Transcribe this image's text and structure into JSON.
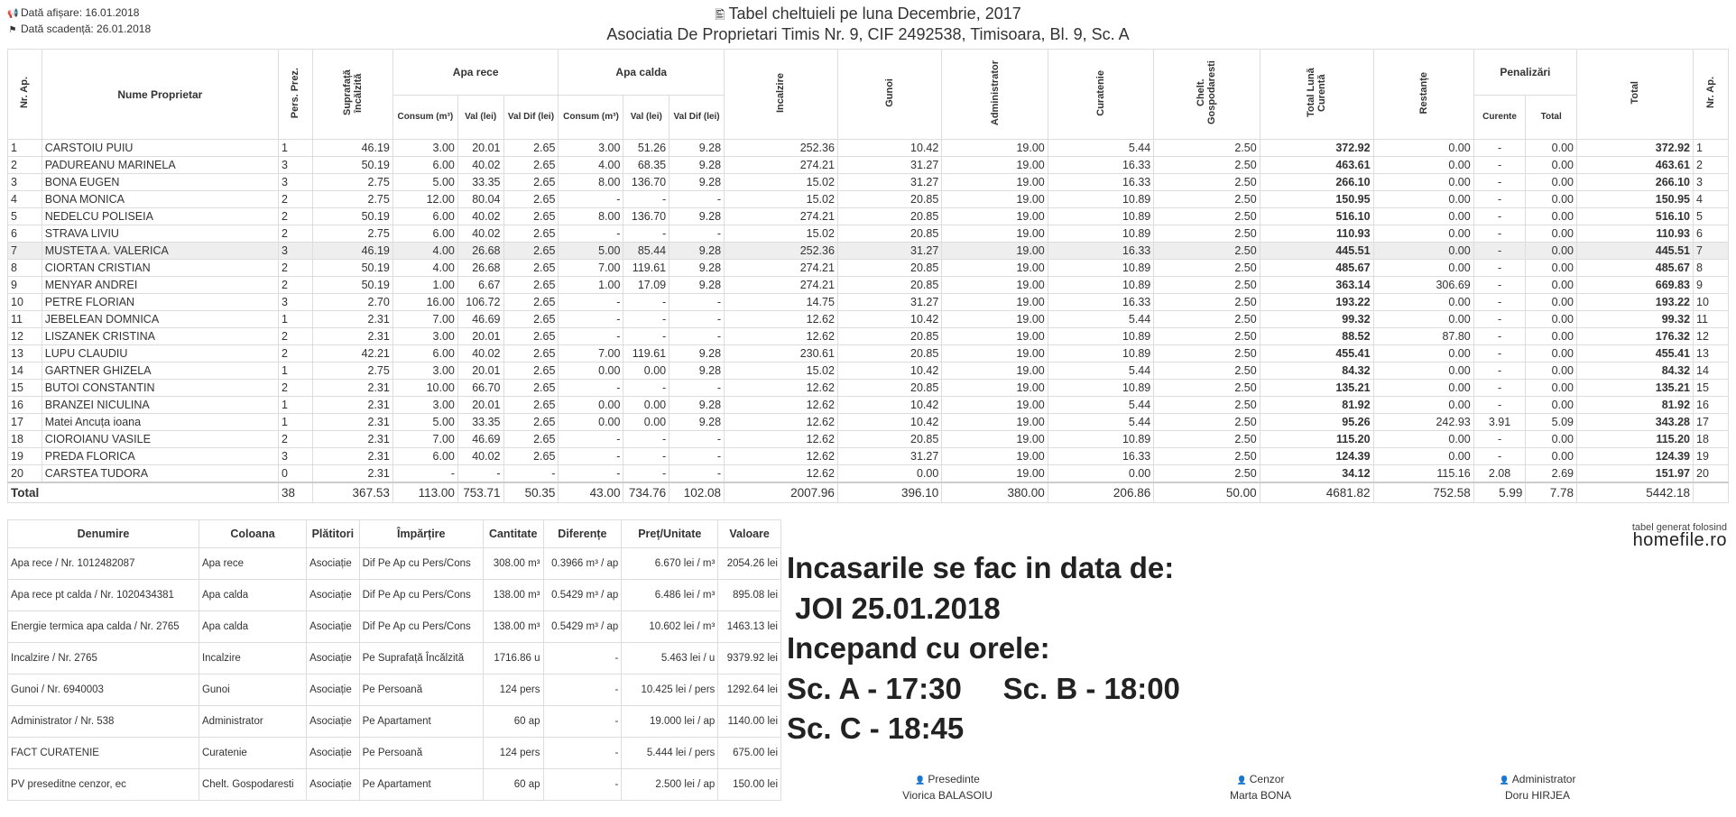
{
  "header": {
    "display_date": "Dată afișare: 16.01.2018",
    "due_date": "Dată scadență: 26.01.2018",
    "title": "Tabel cheltuieli pe luna Decembrie, 2017",
    "subtitle": "Asociatia De Proprietari Timis Nr. 9, CIF 2492538, Timisoara, Bl. 9, Sc. A"
  },
  "columns": {
    "nr_ap": "Nr. Ap.",
    "owner": "Nume Proprietar",
    "pers": "Pers. Prez.",
    "surface": "Suprafață încălzită",
    "cold_water": "Apa rece",
    "hot_water": "Apa calda",
    "consum": "Consum (m³)",
    "val": "Val (lei)",
    "val_dif": "Val Dif (lei)",
    "heating": "Incalzire",
    "garbage": "Gunoi",
    "admin": "Administrator",
    "cleaning": "Curatenie",
    "household": "Chelt. Gospodaresti",
    "total_month": "Total Lună Curentă",
    "arrears": "Restanțe",
    "penalties": "Penalizări",
    "pen_current": "Curente",
    "pen_total": "Total",
    "total": "Total",
    "nr_ap_end": "Nr. Ap."
  },
  "rows": [
    [
      "1",
      "CARSTOIU PUIU",
      "1",
      "46.19",
      "3.00",
      "20.01",
      "2.65",
      "3.00",
      "51.26",
      "9.28",
      "252.36",
      "10.42",
      "19.00",
      "5.44",
      "2.50",
      "372.92",
      "0.00",
      "-",
      "0.00",
      "372.92",
      "1"
    ],
    [
      "2",
      "PADUREANU MARINELA",
      "3",
      "50.19",
      "6.00",
      "40.02",
      "2.65",
      "4.00",
      "68.35",
      "9.28",
      "274.21",
      "31.27",
      "19.00",
      "16.33",
      "2.50",
      "463.61",
      "0.00",
      "-",
      "0.00",
      "463.61",
      "2"
    ],
    [
      "3",
      "BONA EUGEN",
      "3",
      "2.75",
      "5.00",
      "33.35",
      "2.65",
      "8.00",
      "136.70",
      "9.28",
      "15.02",
      "31.27",
      "19.00",
      "16.33",
      "2.50",
      "266.10",
      "0.00",
      "-",
      "0.00",
      "266.10",
      "3"
    ],
    [
      "4",
      "BONA MONICA",
      "2",
      "2.75",
      "12.00",
      "80.04",
      "2.65",
      "-",
      "-",
      "-",
      "15.02",
      "20.85",
      "19.00",
      "10.89",
      "2.50",
      "150.95",
      "0.00",
      "-",
      "0.00",
      "150.95",
      "4"
    ],
    [
      "5",
      "NEDELCU POLISEIA",
      "2",
      "50.19",
      "6.00",
      "40.02",
      "2.65",
      "8.00",
      "136.70",
      "9.28",
      "274.21",
      "20.85",
      "19.00",
      "10.89",
      "2.50",
      "516.10",
      "0.00",
      "-",
      "0.00",
      "516.10",
      "5"
    ],
    [
      "6",
      "STRAVA LIVIU",
      "2",
      "2.75",
      "6.00",
      "40.02",
      "2.65",
      "-",
      "-",
      "-",
      "15.02",
      "20.85",
      "19.00",
      "10.89",
      "2.50",
      "110.93",
      "0.00",
      "-",
      "0.00",
      "110.93",
      "6"
    ],
    [
      "7",
      "MUSTETA A. VALERICA",
      "3",
      "46.19",
      "4.00",
      "26.68",
      "2.65",
      "5.00",
      "85.44",
      "9.28",
      "252.36",
      "31.27",
      "19.00",
      "16.33",
      "2.50",
      "445.51",
      "0.00",
      "-",
      "0.00",
      "445.51",
      "7"
    ],
    [
      "8",
      "CIORTAN CRISTIAN",
      "2",
      "50.19",
      "4.00",
      "26.68",
      "2.65",
      "7.00",
      "119.61",
      "9.28",
      "274.21",
      "20.85",
      "19.00",
      "10.89",
      "2.50",
      "485.67",
      "0.00",
      "-",
      "0.00",
      "485.67",
      "8"
    ],
    [
      "9",
      "MENYAR ANDREI",
      "2",
      "50.19",
      "1.00",
      "6.67",
      "2.65",
      "1.00",
      "17.09",
      "9.28",
      "274.21",
      "20.85",
      "19.00",
      "10.89",
      "2.50",
      "363.14",
      "306.69",
      "-",
      "0.00",
      "669.83",
      "9"
    ],
    [
      "10",
      "PETRE FLORIAN",
      "3",
      "2.70",
      "16.00",
      "106.72",
      "2.65",
      "-",
      "-",
      "-",
      "14.75",
      "31.27",
      "19.00",
      "16.33",
      "2.50",
      "193.22",
      "0.00",
      "-",
      "0.00",
      "193.22",
      "10"
    ],
    [
      "11",
      "JEBELEAN DOMNICA",
      "1",
      "2.31",
      "7.00",
      "46.69",
      "2.65",
      "-",
      "-",
      "-",
      "12.62",
      "10.42",
      "19.00",
      "5.44",
      "2.50",
      "99.32",
      "0.00",
      "-",
      "0.00",
      "99.32",
      "11"
    ],
    [
      "12",
      "LISZANEK CRISTINA",
      "2",
      "2.31",
      "3.00",
      "20.01",
      "2.65",
      "-",
      "-",
      "-",
      "12.62",
      "20.85",
      "19.00",
      "10.89",
      "2.50",
      "88.52",
      "87.80",
      "-",
      "0.00",
      "176.32",
      "12"
    ],
    [
      "13",
      "LUPU CLAUDIU",
      "2",
      "42.21",
      "6.00",
      "40.02",
      "2.65",
      "7.00",
      "119.61",
      "9.28",
      "230.61",
      "20.85",
      "19.00",
      "10.89",
      "2.50",
      "455.41",
      "0.00",
      "-",
      "0.00",
      "455.41",
      "13"
    ],
    [
      "14",
      "GARTNER GHIZELA",
      "1",
      "2.75",
      "3.00",
      "20.01",
      "2.65",
      "0.00",
      "0.00",
      "9.28",
      "15.02",
      "10.42",
      "19.00",
      "5.44",
      "2.50",
      "84.32",
      "0.00",
      "-",
      "0.00",
      "84.32",
      "14"
    ],
    [
      "15",
      "BUTOI CONSTANTIN",
      "2",
      "2.31",
      "10.00",
      "66.70",
      "2.65",
      "-",
      "-",
      "-",
      "12.62",
      "20.85",
      "19.00",
      "10.89",
      "2.50",
      "135.21",
      "0.00",
      "-",
      "0.00",
      "135.21",
      "15"
    ],
    [
      "16",
      "BRANZEI NICULINA",
      "1",
      "2.31",
      "3.00",
      "20.01",
      "2.65",
      "0.00",
      "0.00",
      "9.28",
      "12.62",
      "10.42",
      "19.00",
      "5.44",
      "2.50",
      "81.92",
      "0.00",
      "-",
      "0.00",
      "81.92",
      "16"
    ],
    [
      "17",
      "Matei Ancuța ioana",
      "1",
      "2.31",
      "5.00",
      "33.35",
      "2.65",
      "0.00",
      "0.00",
      "9.28",
      "12.62",
      "10.42",
      "19.00",
      "5.44",
      "2.50",
      "95.26",
      "242.93",
      "3.91",
      "5.09",
      "343.28",
      "17"
    ],
    [
      "18",
      "CIOROIANU VASILE",
      "2",
      "2.31",
      "7.00",
      "46.69",
      "2.65",
      "-",
      "-",
      "-",
      "12.62",
      "20.85",
      "19.00",
      "10.89",
      "2.50",
      "115.20",
      "0.00",
      "-",
      "0.00",
      "115.20",
      "18"
    ],
    [
      "19",
      "PREDA FLORICA",
      "3",
      "2.31",
      "6.00",
      "40.02",
      "2.65",
      "-",
      "-",
      "-",
      "12.62",
      "31.27",
      "19.00",
      "16.33",
      "2.50",
      "124.39",
      "0.00",
      "-",
      "0.00",
      "124.39",
      "19"
    ],
    [
      "20",
      "CARSTEA TUDORA",
      "0",
      "2.31",
      "-",
      "-",
      "-",
      "-",
      "-",
      "-",
      "12.62",
      "0.00",
      "19.00",
      "0.00",
      "2.50",
      "34.12",
      "115.16",
      "2.08",
      "2.69",
      "151.97",
      "20"
    ]
  ],
  "highlighted_row": 7,
  "totals": {
    "label": "Total",
    "values": [
      "38",
      "367.53",
      "113.00",
      "753.71",
      "50.35",
      "43.00",
      "734.76",
      "102.08",
      "2007.96",
      "396.10",
      "380.00",
      "206.86",
      "50.00",
      "4681.82",
      "752.58",
      "5.99",
      "7.78",
      "5442.18",
      ""
    ]
  },
  "expenses": {
    "headers": [
      "Denumire",
      "Coloana",
      "Plătitori",
      "Împărțire",
      "Cantitate",
      "Diferențe",
      "Preț/Unitate",
      "Valoare"
    ],
    "rows": [
      [
        "Apa rece / Nr. 1012482087",
        "Apa rece",
        "Asociație",
        "Dif Pe Ap cu Pers/Cons",
        "308.00 m³",
        "0.3966 m³ / ap",
        "6.670 lei / m³",
        "2054.26 lei"
      ],
      [
        "Apa rece pt calda / Nr. 1020434381",
        "Apa calda",
        "Asociație",
        "Dif Pe Ap cu Pers/Cons",
        "138.00 m³",
        "0.5429 m³ / ap",
        "6.486 lei / m³",
        "895.08 lei"
      ],
      [
        "Energie termica apa calda / Nr. 2765",
        "Apa calda",
        "Asociație",
        "Dif Pe Ap cu Pers/Cons",
        "138.00 m³",
        "0.5429 m³ / ap",
        "10.602 lei / m³",
        "1463.13 lei"
      ],
      [
        "Incalzire / Nr. 2765",
        "Incalzire",
        "Asociație",
        "Pe Suprafață Încălzită",
        "1716.86 u",
        "-",
        "5.463 lei / u",
        "9379.92 lei"
      ],
      [
        "Gunoi / Nr. 6940003",
        "Gunoi",
        "Asociație",
        "Pe Persoană",
        "124 pers",
        "-",
        "10.425 lei / pers",
        "1292.64 lei"
      ],
      [
        "Administrator / Nr. 538",
        "Administrator",
        "Asociație",
        "Pe Apartament",
        "60 ap",
        "-",
        "19.000 lei / ap",
        "1140.00 lei"
      ],
      [
        "FACT CURATENIE",
        "Curatenie",
        "Asociație",
        "Pe Persoană",
        "124 pers",
        "-",
        "5.444 lei / pers",
        "675.00 lei"
      ],
      [
        "PV preseditne cenzor, ec",
        "Chelt. Gospodaresti",
        "Asociație",
        "Pe Apartament",
        "60 ap",
        "-",
        "2.500 lei / ap",
        "150.00 lei"
      ]
    ]
  },
  "logo": {
    "small": "tabel generat folosind",
    "brand": "homefile.ro"
  },
  "notice": {
    "line1": "Incasarile se fac in data de:",
    "line2": " JOI 25.01.2018",
    "line3": "Incepand cu orele:",
    "line4": "Sc. A - 17:30     Sc. B - 18:00",
    "line5": "Sc. C - 18:45"
  },
  "signatures": [
    {
      "role": "Presedinte",
      "name": "Viorica BALASOIU"
    },
    {
      "role": "Cenzor",
      "name": "Marta BONA"
    },
    {
      "role": "Administrator",
      "name": "Doru HIRJEA"
    }
  ]
}
